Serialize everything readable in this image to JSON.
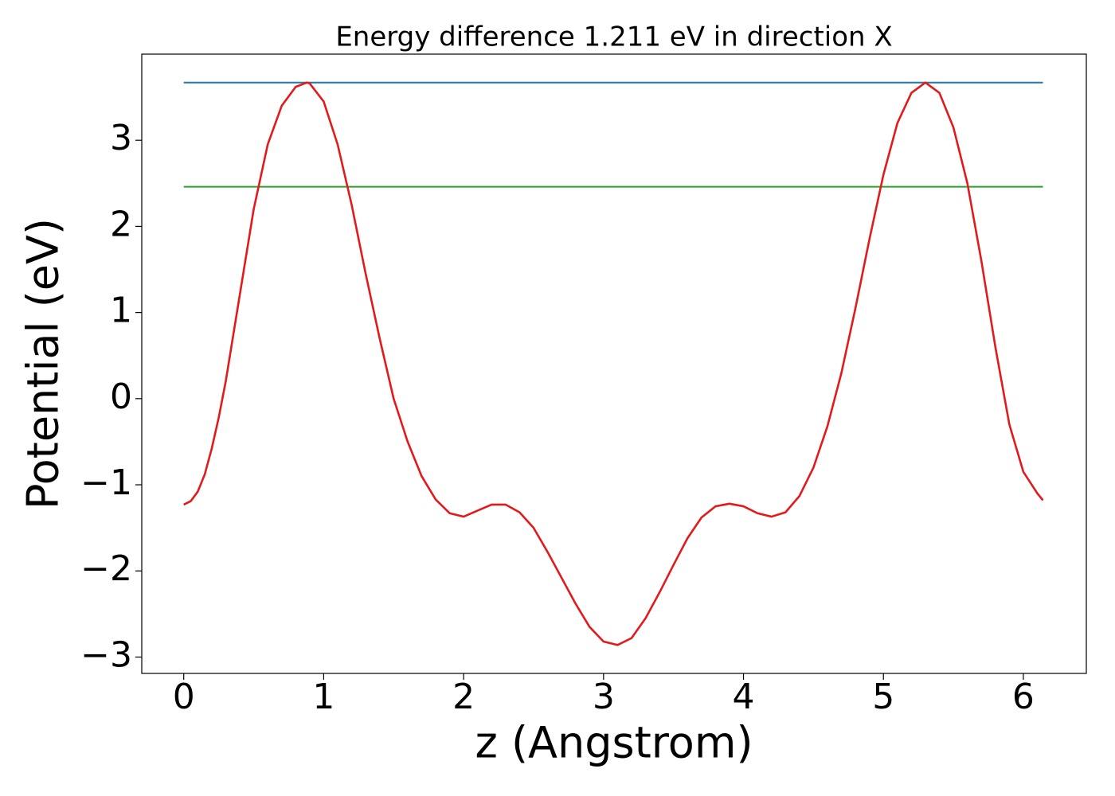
{
  "chart_data": {
    "type": "line",
    "title": "Energy difference 1.211 eV in direction X",
    "x_label": "z (Angstrom)",
    "y_label": "Potential (eV)",
    "xlim": [
      -0.3,
      6.45
    ],
    "ylim": [
      -3.19,
      4.0
    ],
    "xticks": [
      0,
      1,
      2,
      3,
      4,
      5,
      6
    ],
    "yticks": [
      {
        "value": -3,
        "label": "−3"
      },
      {
        "value": -2,
        "label": "−2"
      },
      {
        "value": -1,
        "label": "−1"
      },
      0,
      1,
      2,
      3
    ],
    "series": [
      {
        "color": "#1f77b4",
        "x": [
          0,
          6.14
        ],
        "values": [
          3.67,
          3.67
        ]
      },
      {
        "color": "#2ca02c",
        "x": [
          0,
          6.14
        ],
        "values": [
          2.46,
          2.46
        ]
      },
      {
        "color": "#e31a1c",
        "x": [
          0,
          0.05,
          0.1,
          0.15,
          0.2,
          0.25,
          0.3,
          0.4,
          0.5,
          0.6,
          0.7,
          0.8,
          0.88,
          0.9,
          1.0,
          1.1,
          1.2,
          1.3,
          1.4,
          1.5,
          1.6,
          1.7,
          1.8,
          1.9,
          2.0,
          2.1,
          2.2,
          2.3,
          2.4,
          2.5,
          2.6,
          2.7,
          2.8,
          2.9,
          3.0,
          3.1,
          3.2,
          3.3,
          3.4,
          3.5,
          3.6,
          3.7,
          3.8,
          3.9,
          4.0,
          4.1,
          4.2,
          4.3,
          4.4,
          4.5,
          4.6,
          4.7,
          4.8,
          4.9,
          5.0,
          5.1,
          5.2,
          5.3,
          5.4,
          5.5,
          5.6,
          5.7,
          5.8,
          5.9,
          6.0,
          6.1,
          6.14
        ],
        "values": [
          -1.23,
          -1.19,
          -1.08,
          -0.88,
          -0.58,
          -0.22,
          0.2,
          1.2,
          2.2,
          2.95,
          3.4,
          3.62,
          3.67,
          3.66,
          3.45,
          2.95,
          2.25,
          1.45,
          0.7,
          0.0,
          -0.5,
          -0.9,
          -1.17,
          -1.33,
          -1.37,
          -1.3,
          -1.23,
          -1.23,
          -1.32,
          -1.5,
          -1.78,
          -2.08,
          -2.38,
          -2.65,
          -2.82,
          -2.86,
          -2.78,
          -2.55,
          -2.25,
          -1.93,
          -1.62,
          -1.38,
          -1.25,
          -1.22,
          -1.25,
          -1.33,
          -1.37,
          -1.32,
          -1.13,
          -0.8,
          -0.32,
          0.3,
          1.05,
          1.85,
          2.6,
          3.2,
          3.55,
          3.67,
          3.55,
          3.15,
          2.5,
          1.6,
          0.6,
          -0.3,
          -0.85,
          -1.1,
          -1.18
        ]
      }
    ]
  }
}
